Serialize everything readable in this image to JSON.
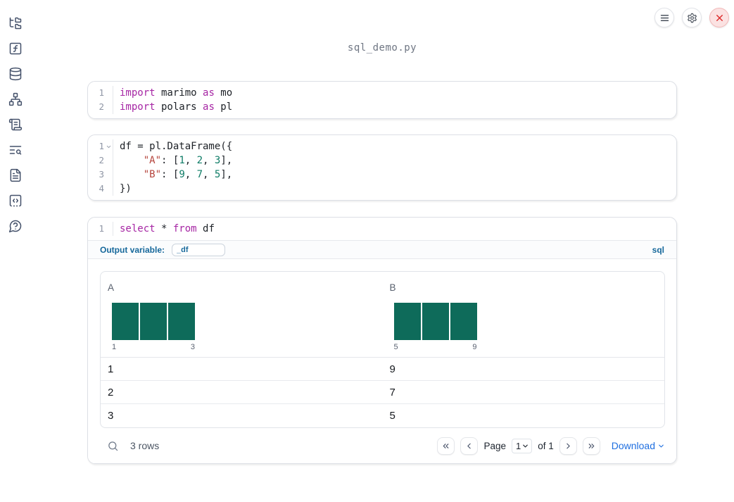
{
  "window": {
    "filename": "sql_demo.py"
  },
  "topbar": {
    "buttons": [
      "menu",
      "settings",
      "shutdown"
    ]
  },
  "sidebar": {
    "icons": [
      "file-tree",
      "function-square",
      "database",
      "dependency-graph",
      "scroll",
      "text-search",
      "document",
      "snippets",
      "help-chat"
    ]
  },
  "cells": [
    {
      "lines": [
        {
          "n": "1",
          "tokens": [
            {
              "c": "kw",
              "t": "import"
            },
            {
              "c": "pl",
              "t": " marimo "
            },
            {
              "c": "kw",
              "t": "as"
            },
            {
              "c": "pl",
              "t": " mo"
            }
          ]
        },
        {
          "n": "2",
          "tokens": [
            {
              "c": "kw",
              "t": "import"
            },
            {
              "c": "pl",
              "t": " polars "
            },
            {
              "c": "kw",
              "t": "as"
            },
            {
              "c": "pl",
              "t": " pl"
            }
          ]
        }
      ]
    },
    {
      "lines": [
        {
          "n": "1",
          "tokens": [
            {
              "c": "pl",
              "t": "df = pl.DataFrame({"
            }
          ]
        },
        {
          "n": "2",
          "tokens": [
            {
              "c": "pl",
              "t": "    "
            },
            {
              "c": "str",
              "t": "\"A\""
            },
            {
              "c": "pl",
              "t": ": ["
            },
            {
              "c": "num",
              "t": "1"
            },
            {
              "c": "pl",
              "t": ", "
            },
            {
              "c": "num",
              "t": "2"
            },
            {
              "c": "pl",
              "t": ", "
            },
            {
              "c": "num",
              "t": "3"
            },
            {
              "c": "pl",
              "t": "],"
            }
          ]
        },
        {
          "n": "3",
          "tokens": [
            {
              "c": "pl",
              "t": "    "
            },
            {
              "c": "str",
              "t": "\"B\""
            },
            {
              "c": "pl",
              "t": ": ["
            },
            {
              "c": "num",
              "t": "9"
            },
            {
              "c": "pl",
              "t": ", "
            },
            {
              "c": "num",
              "t": "7"
            },
            {
              "c": "pl",
              "t": ", "
            },
            {
              "c": "num",
              "t": "5"
            },
            {
              "c": "pl",
              "t": "],"
            }
          ]
        },
        {
          "n": "4",
          "tokens": [
            {
              "c": "pl",
              "t": "})"
            }
          ]
        }
      ]
    },
    {
      "lines": [
        {
          "n": "1",
          "tokens": [
            {
              "c": "kw",
              "t": "select"
            },
            {
              "c": "pl",
              "t": " * "
            },
            {
              "c": "kw",
              "t": "from"
            },
            {
              "c": "pl",
              "t": " df"
            }
          ]
        }
      ]
    }
  ],
  "sql_cell": {
    "output_variable_label": "Output variable:",
    "output_variable_value": "_df",
    "language_badge": "sql"
  },
  "table": {
    "columns": [
      {
        "name": "A",
        "hist": {
          "bar_count": 3,
          "ticks": [
            "1",
            "3"
          ]
        }
      },
      {
        "name": "B",
        "hist": {
          "bar_count": 3,
          "ticks": [
            "5",
            "9"
          ]
        }
      }
    ],
    "rows": [
      [
        "1",
        "9"
      ],
      [
        "2",
        "7"
      ],
      [
        "3",
        "5"
      ]
    ],
    "footer": {
      "row_count": "3 rows",
      "page_label": "Page",
      "page_value": "1",
      "of_label": "of 1",
      "download_label": "Download"
    }
  },
  "colors": {
    "accent_blue": "#16689b",
    "link_blue": "#1f6fe0",
    "histogram_bar": "#0e6b5a",
    "keyword": "#a626a4",
    "string": "#b5443c",
    "number": "#0e7c66",
    "close_red": "#dc2626",
    "sidebar_icon": "#44516a"
  }
}
